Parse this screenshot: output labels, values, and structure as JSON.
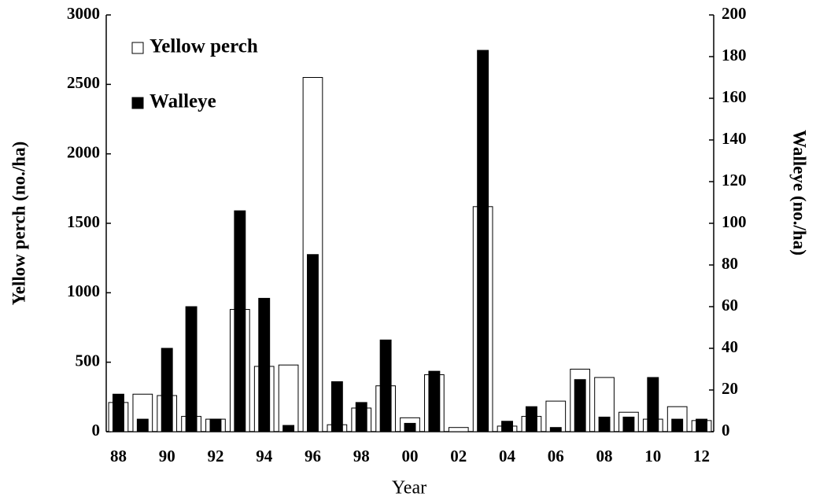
{
  "chart_data": {
    "type": "bar",
    "xlabel": "Year",
    "ylabel": "Yellow perch (no./ha)",
    "y2label": "Walleye (no./ha)",
    "categories": [
      "88",
      null,
      "90",
      null,
      "92",
      null,
      "94",
      null,
      "96",
      null,
      "98",
      null,
      "00",
      null,
      "02",
      null,
      "04",
      null,
      "06",
      null,
      "08",
      null,
      "10",
      null,
      "12"
    ],
    "series": [
      {
        "name": "Yellow perch",
        "color": "#ffffff",
        "values": [
          210,
          270,
          260,
          110,
          90,
          880,
          470,
          480,
          2550,
          50,
          170,
          330,
          100,
          410,
          30,
          1620,
          40,
          110,
          220,
          450,
          390,
          140,
          90,
          180,
          80
        ]
      },
      {
        "name": "Walleye",
        "color": "#000000",
        "axis": "y2",
        "values": [
          18,
          6,
          40,
          60,
          6,
          106,
          64,
          3,
          85,
          24,
          14,
          44,
          4,
          29,
          0,
          183,
          5,
          12,
          2,
          25,
          7,
          7,
          26,
          6,
          6
        ]
      }
    ],
    "ylim": [
      0,
      3000
    ],
    "yticks": [
      0,
      500,
      1000,
      1500,
      2000,
      2500,
      3000
    ],
    "y2lim": [
      0,
      200
    ],
    "y2ticks": [
      0,
      20,
      40,
      60,
      80,
      100,
      120,
      140,
      160,
      180,
      200
    ],
    "legend": "upper left"
  }
}
